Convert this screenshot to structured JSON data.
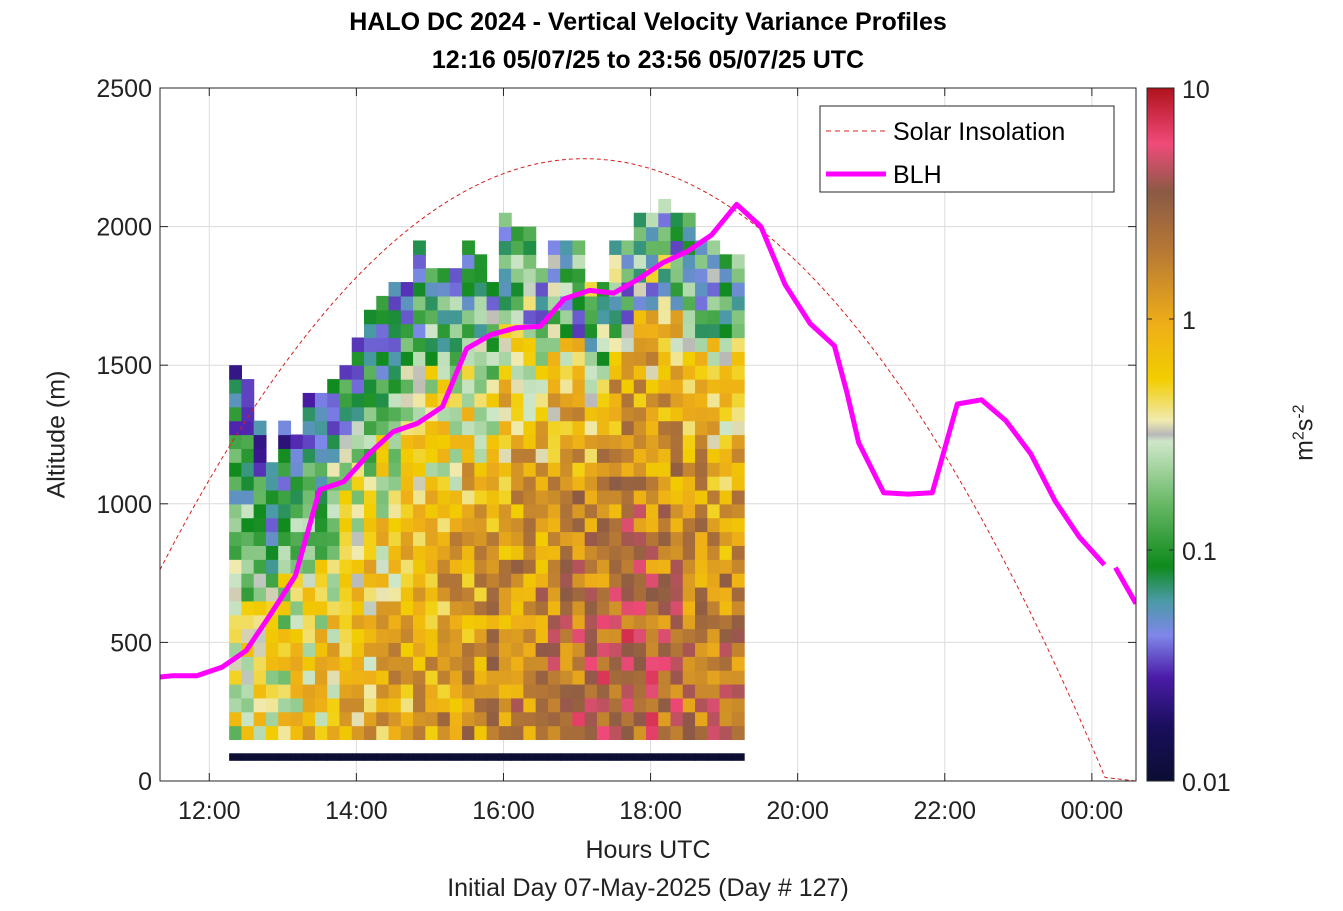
{
  "chart_data": {
    "type": "heatmap",
    "title": "HALO DC 2024 - Vertical Velocity Variance Profiles",
    "subtitle": "12:16 05/07/25 to 23:56 05/07/25  UTC",
    "xlabel": "Hours UTC",
    "xsublabel": "Initial Day 07-May-2025 (Day # 127)",
    "ylabel": "Altitude (m)",
    "xlim": [
      11.33,
      24.6
    ],
    "ylim": [
      0,
      2500
    ],
    "x_ticks": [
      12,
      14,
      16,
      18,
      20,
      22,
      24
    ],
    "x_tick_labels": [
      "12:00",
      "14:00",
      "16:00",
      "18:00",
      "20:00",
      "22:00",
      "00:00"
    ],
    "y_ticks": [
      0,
      500,
      1000,
      1500,
      2000,
      2500
    ],
    "y_tick_labels": [
      "0",
      "500",
      "1000",
      "1500",
      "2000",
      "2500"
    ],
    "grid": true,
    "colorbar": {
      "scale": "log",
      "range": [
        0.01,
        10
      ],
      "ticks": [
        0.01,
        0.1,
        1,
        10
      ],
      "tick_labels": [
        "0.01",
        "0.1",
        "1",
        "10"
      ],
      "unit_base": "m",
      "unit_exp1": "2",
      "unit_mid": "s",
      "unit_exp2": "-2"
    },
    "legend": {
      "position": "top-right",
      "entries": [
        {
          "label": "Solar Insolation",
          "color": "#d62020",
          "style": "dashed"
        },
        {
          "label": "BLH",
          "color": "#ff00ff",
          "style": "solid"
        }
      ]
    },
    "heatmap": {
      "x_start": 12.27,
      "x_step": 0.1667,
      "y_start": 100,
      "y_step": 50,
      "columns_top_m": [
        1500,
        1450,
        1300,
        1150,
        1300,
        1250,
        1400,
        1400,
        1450,
        1500,
        1600,
        1700,
        1750,
        1800,
        1800,
        1950,
        1850,
        1850,
        1850,
        1950,
        1900,
        1800,
        2050,
        2000,
        2000,
        1850,
        1950,
        1950,
        1950,
        1800,
        1800,
        1950,
        1950,
        2050,
        2050,
        2100,
        2050,
        2050,
        1950,
        1950,
        1900,
        1900
      ],
      "peak_hour": 17.7,
      "peak_log10_variance": 0.55,
      "edge_log10_variance": -1.5,
      "bottom_row_log10_variance": -2
    },
    "series": [
      {
        "name": "Solar Insolation",
        "kind": "curve",
        "peak_hour": 17.1,
        "peak_m": 2245,
        "zero_hour": 24.2
      },
      {
        "name": "BLH",
        "x": [
          11.33,
          11.5,
          11.83,
          12.17,
          12.5,
          12.83,
          13.17,
          13.5,
          13.83,
          14.17,
          14.5,
          14.83,
          15.17,
          15.5,
          15.83,
          16.17,
          16.5,
          16.83,
          17.17,
          17.5,
          17.83,
          18.17,
          18.5,
          18.83,
          19.17,
          19.5,
          19.83,
          20.17,
          20.5,
          20.67,
          20.83,
          21.17,
          21.5,
          21.83,
          22.17,
          22.5,
          22.83,
          23.17,
          23.5,
          23.83,
          24.17
        ],
        "y": [
          375,
          380,
          380,
          410,
          470,
          600,
          740,
          1050,
          1080,
          1180,
          1260,
          1290,
          1350,
          1560,
          1610,
          1635,
          1640,
          1740,
          1770,
          1760,
          1810,
          1870,
          1910,
          1970,
          2080,
          2000,
          1790,
          1650,
          1570,
          1400,
          1220,
          1040,
          1035,
          1040,
          1360,
          1375,
          1300,
          1180,
          1010,
          880,
          780
        ]
      }
    ]
  }
}
